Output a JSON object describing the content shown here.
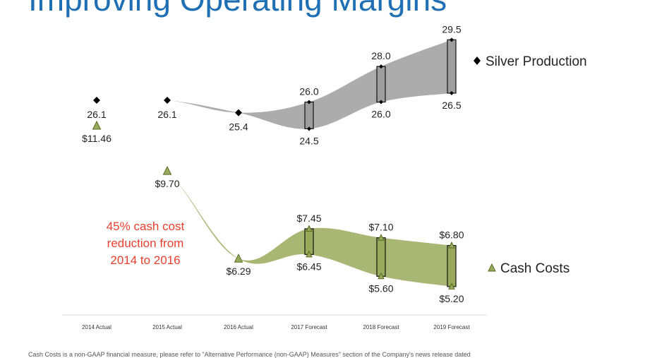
{
  "slide": {
    "title": "Improving Operating Margins",
    "footnote": "Cash Costs is a non-GAAP financial measure, please refer to \"Alternative Performance (non-GAAP) Measures\" section of the Company's news release dated"
  },
  "chart_data": {
    "type": "line",
    "categories": [
      "2014 Actual",
      "2015 Actual",
      "2016 Actual",
      "2017 Forecast",
      "2018 Forecast",
      "2019 Forecast"
    ],
    "series": [
      {
        "name": "Silver Production",
        "marker": "diamond",
        "color": "#000000",
        "band_color": "#9e9e9e",
        "low_labels": [
          "26.1",
          "26.1",
          "25.4",
          "24.5",
          "26.0",
          "26.5"
        ],
        "high_labels": [
          null,
          null,
          null,
          "26.0",
          "28.0",
          "29.5"
        ],
        "low": [
          26.1,
          26.1,
          25.4,
          24.5,
          26.0,
          26.5
        ],
        "high": [
          26.1,
          26.1,
          25.4,
          26.0,
          28.0,
          29.5
        ]
      },
      {
        "name": "Cash Costs",
        "marker": "triangle",
        "color": "#7a8a3a",
        "band_color": "#9aaa5c",
        "low_labels": [
          "$11.46",
          "$9.70",
          "$6.29",
          "$6.45",
          "$5.60",
          "$5.20"
        ],
        "high_labels": [
          null,
          null,
          null,
          "$7.45",
          "$7.10",
          "$6.80"
        ],
        "low": [
          11.46,
          9.7,
          6.29,
          6.45,
          5.6,
          5.2
        ],
        "high": [
          11.46,
          9.7,
          6.29,
          7.45,
          7.1,
          6.8
        ]
      }
    ],
    "annotation": [
      "45% cash cost",
      "reduction from",
      "2014 to 2016"
    ],
    "legend_placement": "right",
    "grid": false
  }
}
